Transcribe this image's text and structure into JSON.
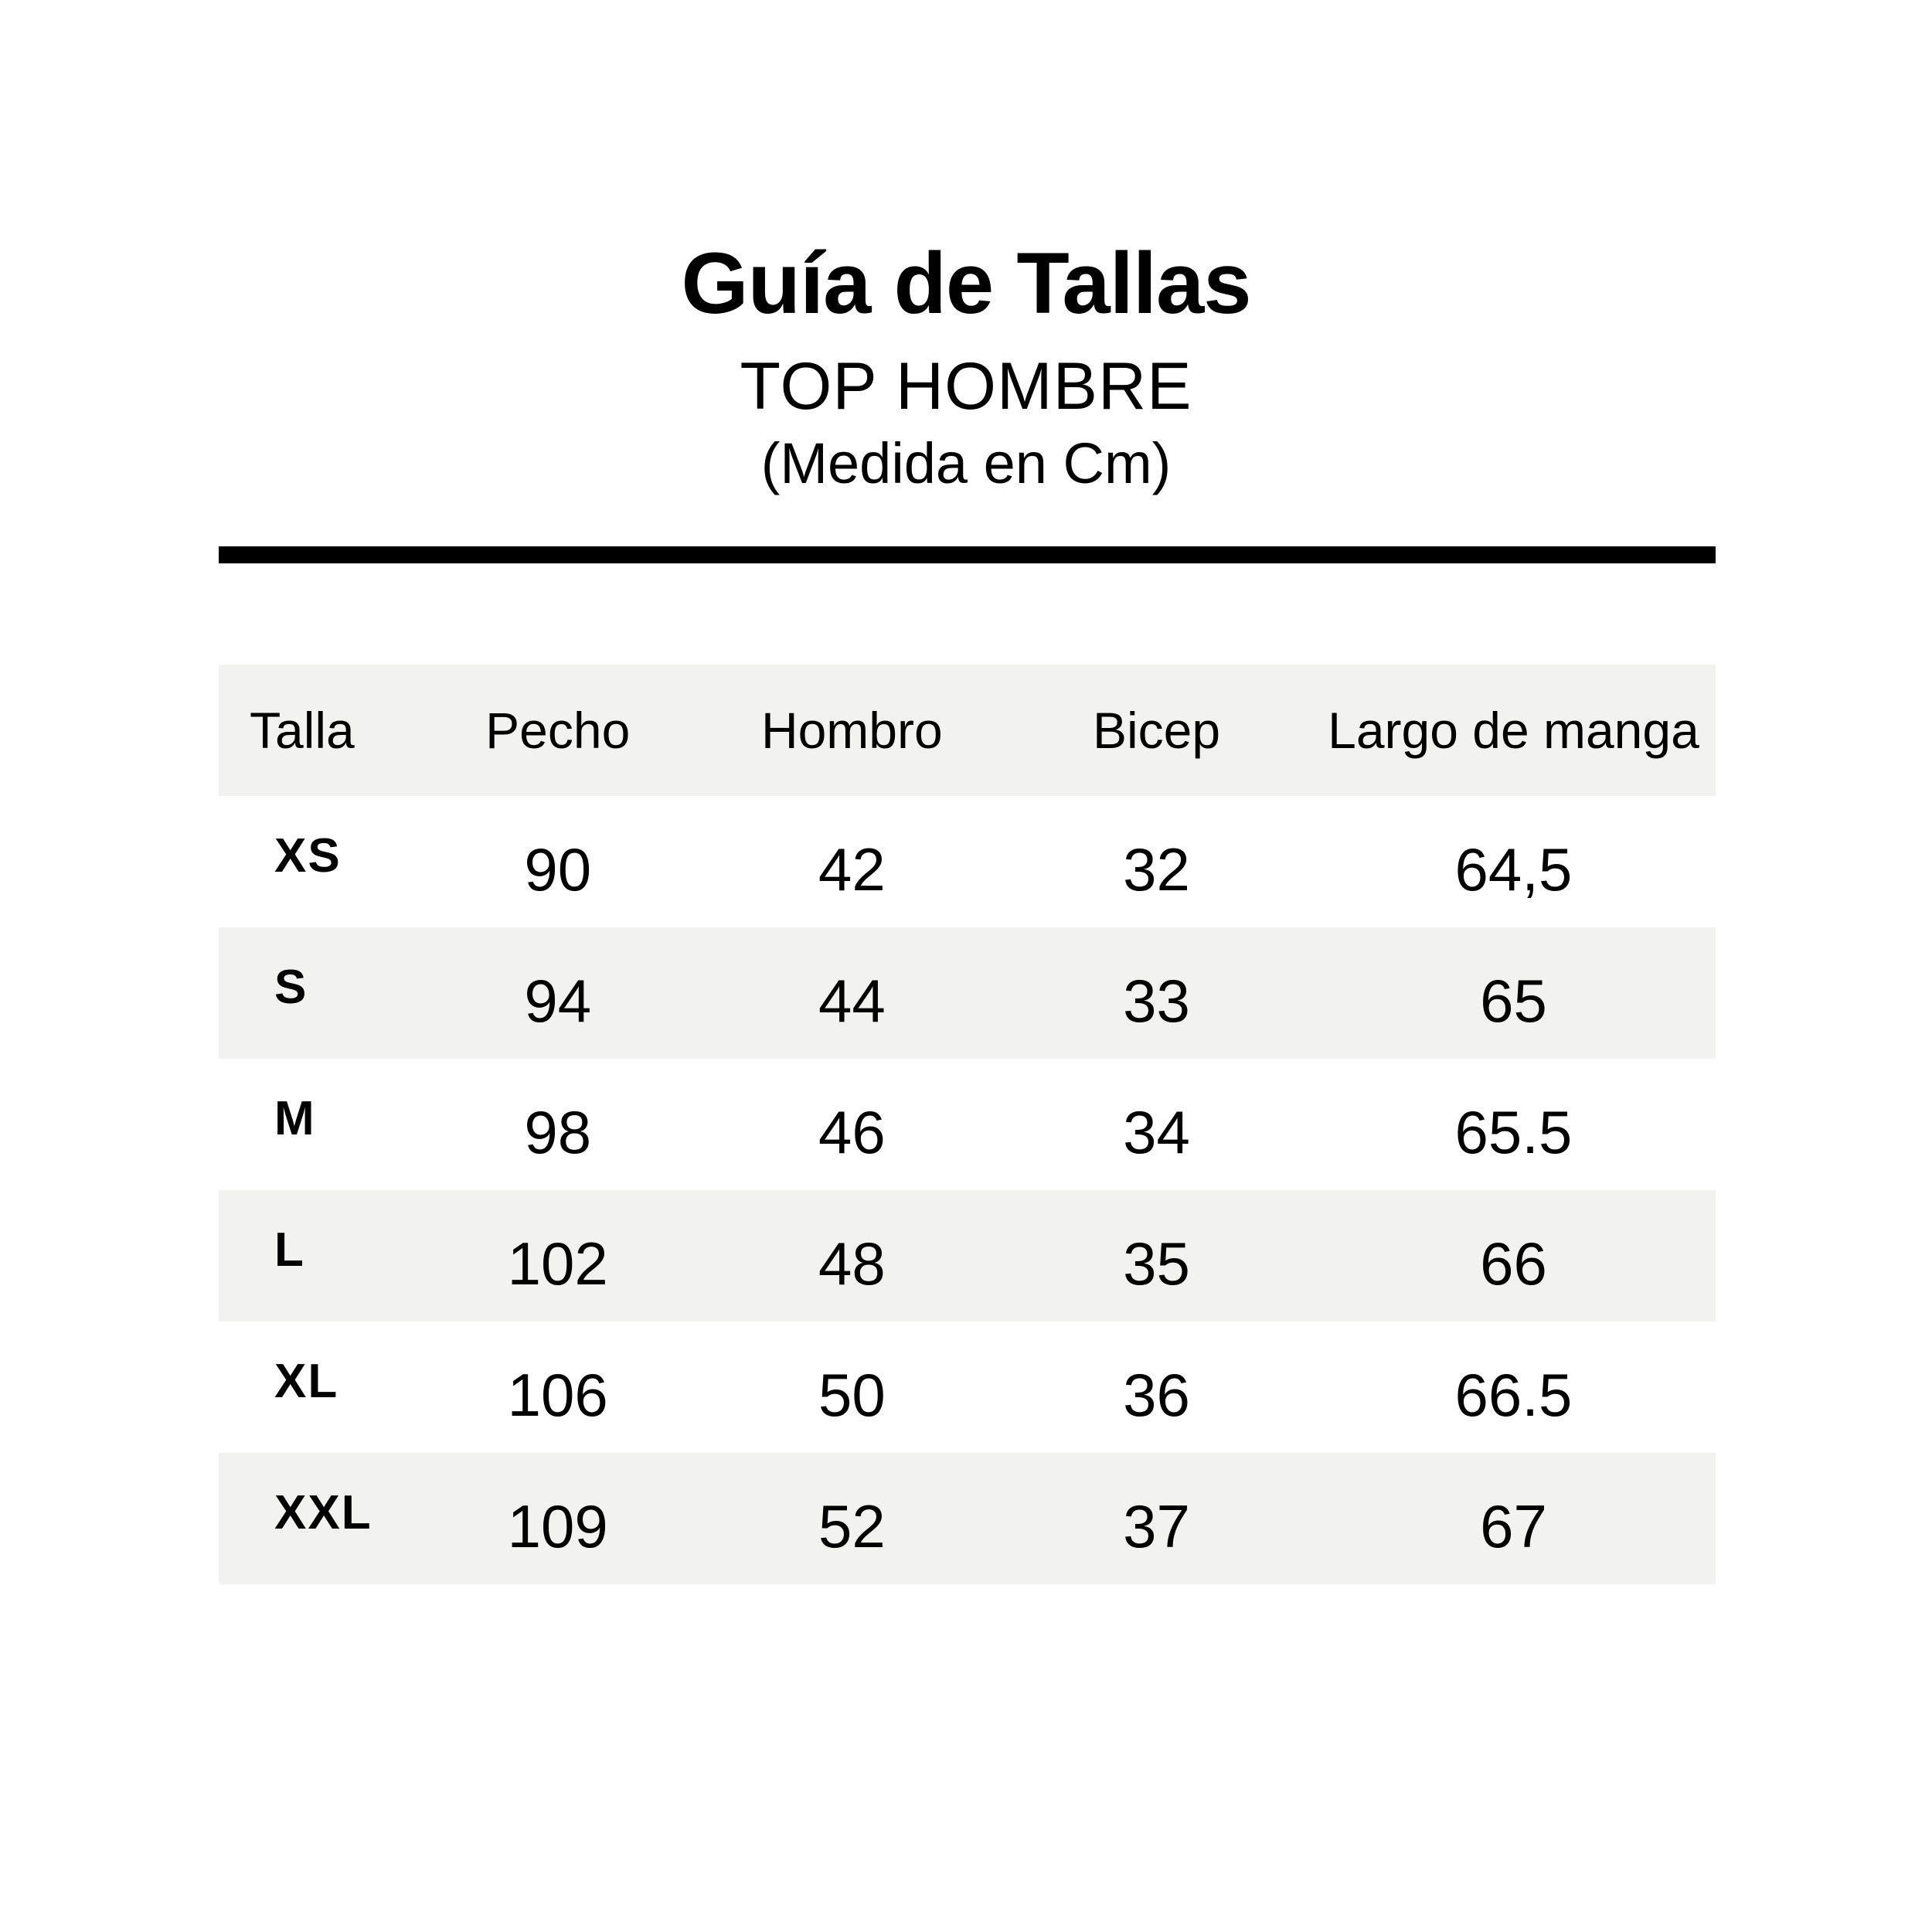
{
  "page": {
    "title": "Guía de Tallas",
    "subtitle": "TOP HOMBRE",
    "note": "(Medida en Cm)"
  },
  "colors": {
    "background": "#ffffff",
    "text": "#000000",
    "divider": "#000000",
    "row_stripe": "#f2f2f0"
  },
  "table": {
    "columns": [
      "Talla",
      "Pecho",
      "Hombro",
      "Bicep",
      "Largo de manga"
    ],
    "rows": [
      {
        "talla": "XS",
        "pecho": "90",
        "hombro": "42",
        "bicep": "32",
        "largo": "64,5"
      },
      {
        "talla": "S",
        "pecho": "94",
        "hombro": "44",
        "bicep": "33",
        "largo": "65"
      },
      {
        "talla": "M",
        "pecho": "98",
        "hombro": "46",
        "bicep": "34",
        "largo": "65.5"
      },
      {
        "talla": "L",
        "pecho": "102",
        "hombro": "48",
        "bicep": "35",
        "largo": "66"
      },
      {
        "talla": "XL",
        "pecho": "106",
        "hombro": "50",
        "bicep": "36",
        "largo": "66.5"
      },
      {
        "talla": "XXL",
        "pecho": "109",
        "hombro": "52",
        "bicep": "37",
        "largo": "67"
      }
    ]
  },
  "chart_data": {
    "type": "table",
    "title": "Guía de Tallas",
    "subtitle": "TOP HOMBRE",
    "units": "cm",
    "columns": [
      "Talla",
      "Pecho",
      "Hombro",
      "Bicep",
      "Largo de manga"
    ],
    "rows": [
      [
        "XS",
        90,
        42,
        32,
        64.5
      ],
      [
        "S",
        94,
        44,
        33,
        65
      ],
      [
        "M",
        98,
        46,
        34,
        65.5
      ],
      [
        "L",
        102,
        48,
        35,
        66
      ],
      [
        "XL",
        106,
        50,
        36,
        66.5
      ],
      [
        "XXL",
        109,
        52,
        37,
        67
      ]
    ]
  }
}
